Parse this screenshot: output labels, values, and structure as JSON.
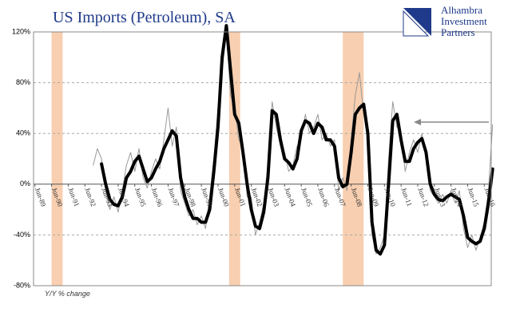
{
  "chart_data": {
    "type": "line",
    "title": "US Imports (Petroleum), SA",
    "axis_note": "Y/Y % change",
    "logo": {
      "lines": [
        "Alhambra",
        "Investment",
        "Partners"
      ]
    },
    "xlim": [
      "1989-05",
      "2016-11"
    ],
    "ylim": [
      -80,
      120
    ],
    "yticks": [
      {
        "value": -80,
        "label": "-80%"
      },
      {
        "value": -40,
        "label": "-40%"
      },
      {
        "value": 0,
        "label": "0%"
      },
      {
        "value": 40,
        "label": "40%"
      },
      {
        "value": 80,
        "label": "80%"
      },
      {
        "value": 120,
        "label": "120%"
      }
    ],
    "xticks": [
      {
        "value": "1989-06",
        "label": "Jun-89"
      },
      {
        "value": "1990-06",
        "label": "Jun-90"
      },
      {
        "value": "1991-06",
        "label": "Jun-91"
      },
      {
        "value": "1992-06",
        "label": "Jun-92"
      },
      {
        "value": "1993-06",
        "label": "Jun-93"
      },
      {
        "value": "1994-06",
        "label": "Jun-94"
      },
      {
        "value": "1995-06",
        "label": "Jun-95"
      },
      {
        "value": "1996-06",
        "label": "Jun-96"
      },
      {
        "value": "1997-06",
        "label": "Jun-97"
      },
      {
        "value": "1998-06",
        "label": "Jun-98"
      },
      {
        "value": "1999-06",
        "label": "Jun-99"
      },
      {
        "value": "2000-06",
        "label": "Jun-00"
      },
      {
        "value": "2001-06",
        "label": "Jun-01"
      },
      {
        "value": "2002-06",
        "label": "Jun-02"
      },
      {
        "value": "2003-06",
        "label": "Jun-03"
      },
      {
        "value": "2004-06",
        "label": "Jun-04"
      },
      {
        "value": "2005-06",
        "label": "Jun-05"
      },
      {
        "value": "2006-06",
        "label": "Jun-06"
      },
      {
        "value": "2007-06",
        "label": "Jun-07"
      },
      {
        "value": "2008-06",
        "label": "Jun-08"
      },
      {
        "value": "2009-06",
        "label": "Jun-09"
      },
      {
        "value": "2010-06",
        "label": "Jun-10"
      },
      {
        "value": "2011-06",
        "label": "Jun-11"
      },
      {
        "value": "2012-06",
        "label": "Jun-12"
      },
      {
        "value": "2013-06",
        "label": "Jun-13"
      },
      {
        "value": "2014-06",
        "label": "Jun-14"
      },
      {
        "value": "2015-06",
        "label": "Jun-15"
      },
      {
        "value": "2016-06",
        "label": "Jun-16"
      }
    ],
    "grid": true,
    "shaded_periods": [
      [
        "1990-06",
        "1991-02"
      ],
      [
        "2001-02",
        "2001-10"
      ],
      [
        "2007-12",
        "2009-03"
      ]
    ],
    "shade_color": "#f8cfb0",
    "x": [
      "1992-12",
      "1993-03",
      "1993-06",
      "1993-09",
      "1993-12",
      "1994-03",
      "1994-06",
      "1994-09",
      "1994-12",
      "1995-03",
      "1995-06",
      "1995-09",
      "1995-12",
      "1996-03",
      "1996-06",
      "1996-09",
      "1996-12",
      "1997-03",
      "1997-06",
      "1997-09",
      "1997-12",
      "1998-03",
      "1998-06",
      "1998-09",
      "1998-12",
      "1999-03",
      "1999-06",
      "1999-09",
      "1999-12",
      "2000-03",
      "2000-06",
      "2000-09",
      "2000-12",
      "2001-03",
      "2001-06",
      "2001-09",
      "2001-12",
      "2002-03",
      "2002-06",
      "2002-09",
      "2002-12",
      "2003-03",
      "2003-06",
      "2003-09",
      "2003-12",
      "2004-03",
      "2004-06",
      "2004-09",
      "2004-12",
      "2005-03",
      "2005-06",
      "2005-09",
      "2005-12",
      "2006-03",
      "2006-06",
      "2006-09",
      "2006-12",
      "2007-03",
      "2007-06",
      "2007-09",
      "2007-12",
      "2008-03",
      "2008-06",
      "2008-09",
      "2008-12",
      "2009-03",
      "2009-06",
      "2009-09",
      "2009-12",
      "2010-03",
      "2010-06",
      "2010-09",
      "2010-12",
      "2011-03",
      "2011-06",
      "2011-09",
      "2011-12",
      "2012-03",
      "2012-06",
      "2012-09",
      "2012-12",
      "2013-03",
      "2013-06",
      "2013-09",
      "2013-12",
      "2014-03",
      "2014-06",
      "2014-09",
      "2014-12",
      "2015-03",
      "2015-06",
      "2015-09",
      "2015-12",
      "2016-03",
      "2016-06",
      "2016-09",
      "2016-12"
    ],
    "series": [
      {
        "name": "Monthly",
        "color": "#999999",
        "width": 1,
        "values": [
          15,
          28,
          20,
          -5,
          -20,
          -10,
          -22,
          -5,
          15,
          25,
          10,
          28,
          5,
          -3,
          10,
          20,
          12,
          35,
          60,
          30,
          45,
          -5,
          -15,
          -25,
          -20,
          -32,
          -25,
          -35,
          -10,
          20,
          60,
          90,
          120,
          70,
          60,
          35,
          30,
          -10,
          -10,
          -40,
          -30,
          -15,
          15,
          65,
          45,
          30,
          25,
          10,
          15,
          30,
          35,
          55,
          40,
          45,
          55,
          35,
          40,
          30,
          35,
          -5,
          5,
          -5,
          35,
          70,
          88,
          55,
          45,
          -40,
          -55,
          -50,
          -40,
          20,
          65,
          45,
          40,
          10,
          25,
          35,
          25,
          40,
          20,
          -5,
          -10,
          -15,
          -8,
          -15,
          -5,
          -15,
          -5,
          -35,
          -50,
          -40,
          -52,
          -42,
          -30,
          -5,
          47
        ]
      },
      {
        "name": "Smoothed",
        "color": "#000000",
        "width": 4,
        "values": [
          null,
          null,
          16,
          0,
          -12,
          -16,
          -17,
          -10,
          5,
          10,
          18,
          22,
          12,
          2,
          5,
          12,
          18,
          28,
          35,
          42,
          38,
          5,
          -10,
          -20,
          -27,
          -27,
          -30,
          -30,
          -20,
          10,
          45,
          100,
          125,
          90,
          55,
          48,
          25,
          0,
          -20,
          -33,
          -35,
          -22,
          5,
          58,
          55,
          35,
          20,
          17,
          12,
          20,
          42,
          50,
          48,
          40,
          48,
          45,
          35,
          35,
          30,
          5,
          -2,
          0,
          25,
          55,
          60,
          63,
          40,
          -30,
          -52,
          -55,
          -48,
          0,
          50,
          55,
          35,
          18,
          18,
          28,
          33,
          36,
          25,
          0,
          -8,
          -12,
          -13,
          -10,
          -8,
          -10,
          -12,
          -25,
          -42,
          -45,
          -47,
          -45,
          -35,
          -15,
          12
        ]
      }
    ]
  }
}
